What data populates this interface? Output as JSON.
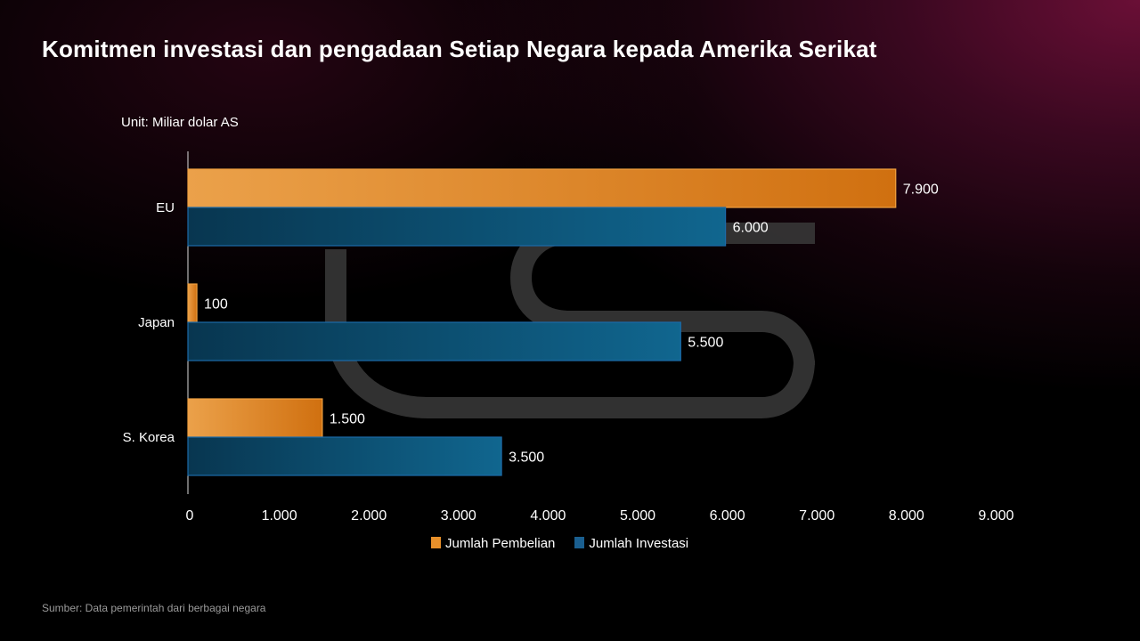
{
  "title": "Komitmen investasi dan pengadaan Setiap Negara kepada Amerika Serikat",
  "unit": "Unit: Miliar dolar AS",
  "source": "Sumber: Data pemerintah dari berbagai negara",
  "colors": {
    "orange": "#e8902a",
    "blue": "#0f5f8a"
  },
  "chart_data": {
    "type": "bar",
    "orientation": "horizontal",
    "title": "Komitmen investasi dan pengadaan Setiap Negara kepada Amerika Serikat",
    "categories": [
      "EU",
      "Japan",
      "S. Korea"
    ],
    "series": [
      {
        "name": "Jumlah Pembelian",
        "values": [
          7900,
          100,
          1500
        ],
        "labels": [
          "7.900",
          "100",
          "1.500"
        ]
      },
      {
        "name": "Jumlah Investasi",
        "values": [
          6000,
          5500,
          3500
        ],
        "labels": [
          "6.000",
          "5.500",
          "3.500"
        ]
      }
    ],
    "xlim": [
      0,
      9000
    ],
    "xticks": [
      0,
      1000,
      2000,
      3000,
      4000,
      5000,
      6000,
      7000,
      8000,
      9000
    ],
    "xtick_labels": [
      "0",
      "1.000",
      "2.000",
      "3.000",
      "4.000",
      "5.000",
      "6.000",
      "7.000",
      "8.000",
      "9.000"
    ],
    "xlabel": "",
    "ylabel": "",
    "legend": "bottom-center",
    "grid": false
  }
}
